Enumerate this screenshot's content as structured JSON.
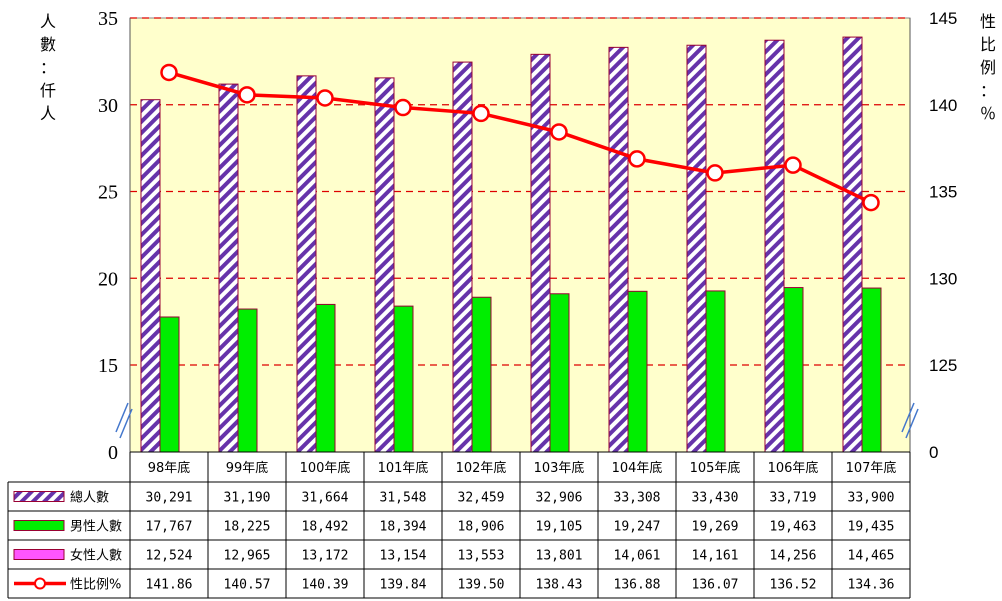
{
  "chart_data": {
    "type": "bar",
    "categories": [
      "98年底",
      "99年底",
      "100年底",
      "101年底",
      "102年底",
      "103年底",
      "104年底",
      "105年底",
      "106年底",
      "107年底"
    ],
    "left_axis_label": [
      "人",
      "數",
      "：",
      "仟",
      "人"
    ],
    "right_axis_label": [
      "性",
      "比",
      "例",
      "：",
      "％"
    ],
    "left_axis": {
      "ticks": [
        35,
        30,
        25,
        20,
        15,
        0
      ],
      "break": true,
      "range": [
        15,
        35
      ],
      "unit": "仟人"
    },
    "right_axis": {
      "ticks": [
        145,
        140,
        135,
        130,
        125,
        0
      ],
      "break": true,
      "range": [
        125,
        145
      ]
    },
    "grid": "dashed-red-horizontal",
    "series": [
      {
        "name": "總人數",
        "kind": "bar",
        "pattern": "purple-diagonal-stripes",
        "values": [
          30291,
          31190,
          31664,
          31548,
          32459,
          32906,
          33308,
          33430,
          33719,
          33900
        ],
        "display": [
          "30,291",
          "31,190",
          "31,664",
          "31,548",
          "32,459",
          "32,906",
          "33,308",
          "33,430",
          "33,719",
          "33,900"
        ]
      },
      {
        "name": "男性人數",
        "kind": "bar",
        "color": "#00ee00",
        "values": [
          17767,
          18225,
          18492,
          18394,
          18906,
          19105,
          19247,
          19269,
          19463,
          19435
        ],
        "display": [
          "17,767",
          "18,225",
          "18,492",
          "18,394",
          "18,906",
          "19,105",
          "19,247",
          "19,269",
          "19,463",
          "19,435"
        ]
      },
      {
        "name": "女性人數",
        "kind": "bar",
        "color": "#ff55ff",
        "values": [
          12524,
          12965,
          13172,
          13154,
          13553,
          13801,
          14061,
          14161,
          14256,
          14465
        ],
        "display": [
          "12,524",
          "12,965",
          "13,172",
          "13,154",
          "13,553",
          "13,801",
          "14,061",
          "14,161",
          "14,256",
          "14,465"
        ]
      },
      {
        "name": "性比例%",
        "kind": "line",
        "color": "#ff0000",
        "axis": "right",
        "values": [
          141.86,
          140.57,
          140.39,
          139.84,
          139.5,
          138.43,
          136.88,
          136.07,
          136.52,
          134.36
        ],
        "display": [
          "141.86",
          "140.57",
          "140.39",
          "139.84",
          "139.50",
          "138.43",
          "136.88",
          "136.07",
          "136.52",
          "134.36"
        ]
      }
    ],
    "colors": {
      "plot_bg": "#ffffcc",
      "grid": "#dd0000",
      "bar_outline": "#990033",
      "break_mark": "#4477cc"
    }
  }
}
